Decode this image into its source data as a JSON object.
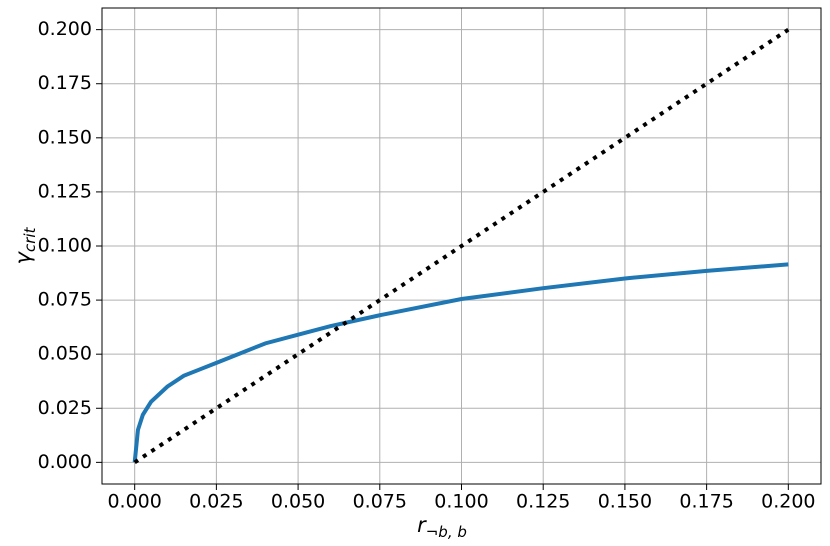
{
  "chart_data": {
    "type": "line",
    "x_label": {
      "symbol": "r",
      "subscript": "¬b, b"
    },
    "y_label": {
      "symbol": "γ",
      "subscript": "crit"
    },
    "xlim": [
      -0.01,
      0.21
    ],
    "ylim": [
      -0.01,
      0.21
    ],
    "xticks": [
      {
        "value": 0,
        "label": "0.000"
      },
      {
        "value": 0.025,
        "label": "0.025"
      },
      {
        "value": 0.05,
        "label": "0.050"
      },
      {
        "value": 0.075,
        "label": "0.075"
      },
      {
        "value": 0.1,
        "label": "0.100"
      },
      {
        "value": 0.125,
        "label": "0.125"
      },
      {
        "value": 0.15,
        "label": "0.150"
      },
      {
        "value": 0.175,
        "label": "0.175"
      },
      {
        "value": 0.2,
        "label": "0.200"
      }
    ],
    "yticks": [
      {
        "value": 0,
        "label": "0.000"
      },
      {
        "value": 0.025,
        "label": "0.025"
      },
      {
        "value": 0.05,
        "label": "0.050"
      },
      {
        "value": 0.075,
        "label": "0.075"
      },
      {
        "value": 0.1,
        "label": "0.100"
      },
      {
        "value": 0.125,
        "label": "0.125"
      },
      {
        "value": 0.15,
        "label": "0.150"
      },
      {
        "value": 0.175,
        "label": "0.175"
      },
      {
        "value": 0.2,
        "label": "0.200"
      }
    ],
    "grid": true,
    "series": [
      {
        "color": "#1f77b4",
        "style": "solid",
        "x": [
          0,
          0.001,
          0.0025,
          0.005,
          0.01,
          0.015,
          0.02,
          0.025,
          0.03,
          0.04,
          0.05,
          0.06,
          0.075,
          0.1,
          0.125,
          0.15,
          0.175,
          0.2
        ],
        "values": [
          0,
          0.015,
          0.022,
          0.028,
          0.035,
          0.04,
          0.043,
          0.046,
          0.049,
          0.055,
          0.059,
          0.063,
          0.068,
          0.0755,
          0.0805,
          0.085,
          0.0885,
          0.0915
        ]
      },
      {
        "color": "#000000",
        "style": "dotted",
        "x": [
          0,
          0.2
        ],
        "values": [
          0,
          0.2
        ]
      }
    ]
  }
}
